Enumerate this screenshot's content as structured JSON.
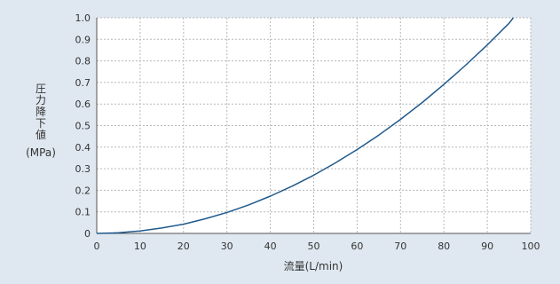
{
  "chart_data": {
    "type": "line",
    "title": "",
    "xlabel": "流量(L/min)",
    "ylabel_lines": [
      "圧",
      "力",
      "降",
      "下",
      "値"
    ],
    "ylabel_unit": "(MPa)",
    "xlim": [
      0,
      100
    ],
    "ylim": [
      0,
      1.0
    ],
    "x_ticks": [
      0,
      10,
      20,
      30,
      40,
      50,
      60,
      70,
      80,
      90,
      100
    ],
    "x_tick_labels": [
      "0",
      "10",
      "20",
      "30",
      "40",
      "50",
      "60",
      "70",
      "80",
      "90",
      "100"
    ],
    "y_ticks": [
      0,
      0.1,
      0.2,
      0.3,
      0.4,
      0.5,
      0.6,
      0.7,
      0.8,
      0.9,
      1.0
    ],
    "y_tick_labels": [
      "0",
      "0.1",
      "0.2",
      "0.3",
      "0.4",
      "0.5",
      "0.6",
      "0.7",
      "0.8",
      "0.9",
      "1.0"
    ],
    "grid": true,
    "legend": "none",
    "series": [
      {
        "color": "#1f5a8c",
        "x": [
          0,
          5,
          10,
          15,
          20,
          25,
          30,
          35,
          40,
          45,
          50,
          55,
          60,
          65,
          70,
          75,
          80,
          85,
          90,
          95,
          96
        ],
        "y": [
          0,
          0.003,
          0.011,
          0.025,
          0.043,
          0.068,
          0.097,
          0.132,
          0.173,
          0.219,
          0.27,
          0.327,
          0.389,
          0.456,
          0.529,
          0.607,
          0.691,
          0.78,
          0.874,
          0.974,
          1.0
        ]
      }
    ]
  }
}
